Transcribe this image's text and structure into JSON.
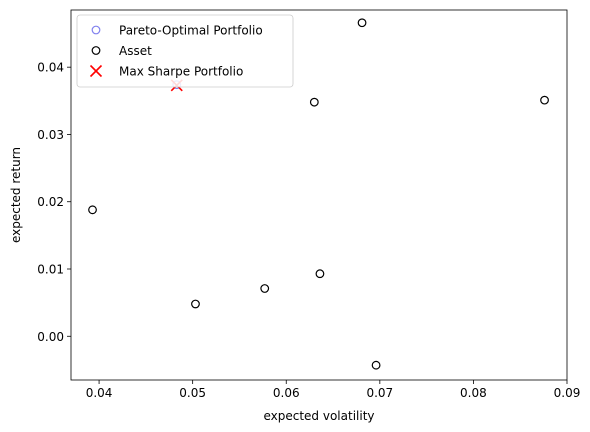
{
  "chart_data": {
    "type": "scatter",
    "title": "",
    "xlabel": "expected volatility",
    "ylabel": "expected return",
    "xlim": [
      0.037,
      0.09
    ],
    "ylim": [
      -0.0065,
      0.0485
    ],
    "xticks": [
      {
        "value": 0.04,
        "label": "0.04"
      },
      {
        "value": 0.05,
        "label": "0.05"
      },
      {
        "value": 0.06,
        "label": "0.06"
      },
      {
        "value": 0.07,
        "label": "0.07"
      },
      {
        "value": 0.08,
        "label": "0.08"
      },
      {
        "value": 0.09,
        "label": "0.09"
      }
    ],
    "yticks": [
      {
        "value": 0.0,
        "label": "0.00"
      },
      {
        "value": 0.01,
        "label": "0.01"
      },
      {
        "value": 0.02,
        "label": "0.02"
      },
      {
        "value": 0.03,
        "label": "0.03"
      },
      {
        "value": 0.04,
        "label": "0.04"
      }
    ],
    "grid": false,
    "legend_position": "top-left",
    "series": [
      {
        "name": "Pareto-Optimal Portfolio",
        "marker": "hollow-circle",
        "color": "#8080ee",
        "points": [
          {
            "x": 0.0483,
            "y": 0.0374
          }
        ]
      },
      {
        "name": "Asset",
        "marker": "hollow-circle",
        "color": "#000000",
        "points": [
          {
            "x": 0.0393,
            "y": 0.0188
          },
          {
            "x": 0.0503,
            "y": 0.0048
          },
          {
            "x": 0.0577,
            "y": 0.0071
          },
          {
            "x": 0.063,
            "y": 0.0348
          },
          {
            "x": 0.0636,
            "y": 0.0093
          },
          {
            "x": 0.0681,
            "y": 0.0466
          },
          {
            "x": 0.0696,
            "y": -0.0043
          },
          {
            "x": 0.0876,
            "y": 0.0351
          }
        ]
      },
      {
        "name": "Max Sharpe Portfolio",
        "marker": "x",
        "color": "#ff0000",
        "points": [
          {
            "x": 0.0483,
            "y": 0.0373
          }
        ]
      }
    ]
  }
}
